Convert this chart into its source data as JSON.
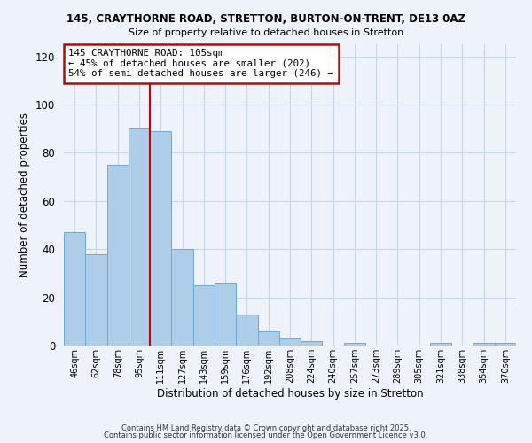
{
  "title1": "145, CRAYTHORNE ROAD, STRETTON, BURTON-ON-TRENT, DE13 0AZ",
  "title2": "Size of property relative to detached houses in Stretton",
  "xlabel": "Distribution of detached houses by size in Stretton",
  "ylabel": "Number of detached properties",
  "bar_labels": [
    "46sqm",
    "62sqm",
    "78sqm",
    "95sqm",
    "111sqm",
    "127sqm",
    "143sqm",
    "159sqm",
    "176sqm",
    "192sqm",
    "208sqm",
    "224sqm",
    "240sqm",
    "257sqm",
    "273sqm",
    "289sqm",
    "305sqm",
    "321sqm",
    "338sqm",
    "354sqm",
    "370sqm"
  ],
  "bar_values": [
    47,
    38,
    75,
    90,
    89,
    40,
    25,
    26,
    13,
    6,
    3,
    2,
    0,
    1,
    0,
    0,
    0,
    1,
    0,
    1,
    1
  ],
  "bar_color": "#aecde8",
  "bar_edge_color": "#6aaad4",
  "vline_color": "#cc0000",
  "annotation_line1": "145 CRAYTHORNE ROAD: 105sqm",
  "annotation_line2": "← 45% of detached houses are smaller (202)",
  "annotation_line3": "54% of semi-detached houses are larger (246) →",
  "annotation_box_color": "#ffffff",
  "annotation_box_edge_color": "#cc0000",
  "ylim": [
    0,
    125
  ],
  "yticks": [
    0,
    20,
    40,
    60,
    80,
    100,
    120
  ],
  "grid_color": "#c8d4e8",
  "background_color": "#eef2fb",
  "footer1": "Contains HM Land Registry data © Crown copyright and database right 2025.",
  "footer2": "Contains public sector information licensed under the Open Government Licence v3.0."
}
